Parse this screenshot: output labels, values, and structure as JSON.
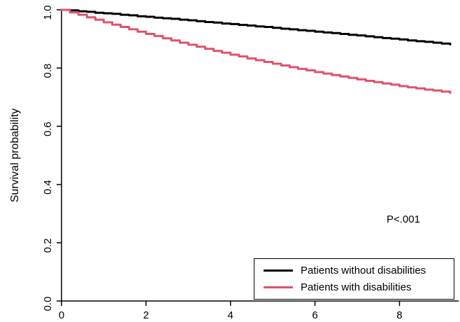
{
  "figure": {
    "background": "#ffffff"
  },
  "chart_data": {
    "type": "line",
    "subtype": "kaplan-meier-step",
    "title": "",
    "xlabel": "",
    "ylabel": "Survival probability",
    "annotation": "P<.001",
    "legend_position": "bottom-right",
    "grid": false,
    "xlim": [
      0,
      9.3
    ],
    "ylim": [
      0,
      1.0
    ],
    "x_tick_labels": [
      "0",
      "2",
      "4",
      "6",
      "8"
    ],
    "x_tick_values": [
      0,
      2,
      4,
      6,
      8
    ],
    "y_tick_labels": [
      "0.0",
      "0.2",
      "0.4",
      "0.6",
      "0.8",
      "1.0"
    ],
    "y_tick_values": [
      0,
      0.2,
      0.4,
      0.6,
      0.8,
      1.0
    ],
    "x": [
      0,
      0.2,
      0.4,
      0.6,
      0.8,
      1.0,
      1.2,
      1.4,
      1.6,
      1.8,
      2.0,
      2.2,
      2.4,
      2.6,
      2.8,
      3.0,
      3.2,
      3.4,
      3.6,
      3.8,
      4.0,
      4.2,
      4.4,
      4.6,
      4.8,
      5.0,
      5.2,
      5.4,
      5.6,
      5.8,
      6.0,
      6.2,
      6.4,
      6.6,
      6.8,
      7.0,
      7.2,
      7.4,
      7.6,
      7.8,
      8.0,
      8.2,
      8.4,
      8.6,
      8.8,
      9.0,
      9.2
    ],
    "series": [
      {
        "name": "Patients without disabilities",
        "color": "#000000",
        "values": [
          1.0,
          0.998,
          0.995,
          0.993,
          0.99,
          0.988,
          0.986,
          0.983,
          0.981,
          0.978,
          0.976,
          0.973,
          0.971,
          0.969,
          0.966,
          0.964,
          0.961,
          0.958,
          0.956,
          0.953,
          0.951,
          0.948,
          0.946,
          0.943,
          0.941,
          0.938,
          0.935,
          0.933,
          0.93,
          0.928,
          0.925,
          0.922,
          0.92,
          0.917,
          0.914,
          0.912,
          0.909,
          0.906,
          0.903,
          0.901,
          0.898,
          0.895,
          0.892,
          0.89,
          0.887,
          0.884,
          0.881
        ]
      },
      {
        "name": "Patients with disabilities",
        "color": "#DF536B",
        "values": [
          1.0,
          0.991,
          0.983,
          0.974,
          0.966,
          0.957,
          0.949,
          0.941,
          0.933,
          0.925,
          0.917,
          0.91,
          0.902,
          0.895,
          0.887,
          0.88,
          0.873,
          0.866,
          0.859,
          0.853,
          0.846,
          0.84,
          0.833,
          0.827,
          0.821,
          0.815,
          0.809,
          0.803,
          0.797,
          0.792,
          0.786,
          0.781,
          0.776,
          0.771,
          0.766,
          0.761,
          0.756,
          0.752,
          0.747,
          0.743,
          0.738,
          0.734,
          0.73,
          0.726,
          0.723,
          0.719,
          0.715
        ]
      }
    ]
  }
}
